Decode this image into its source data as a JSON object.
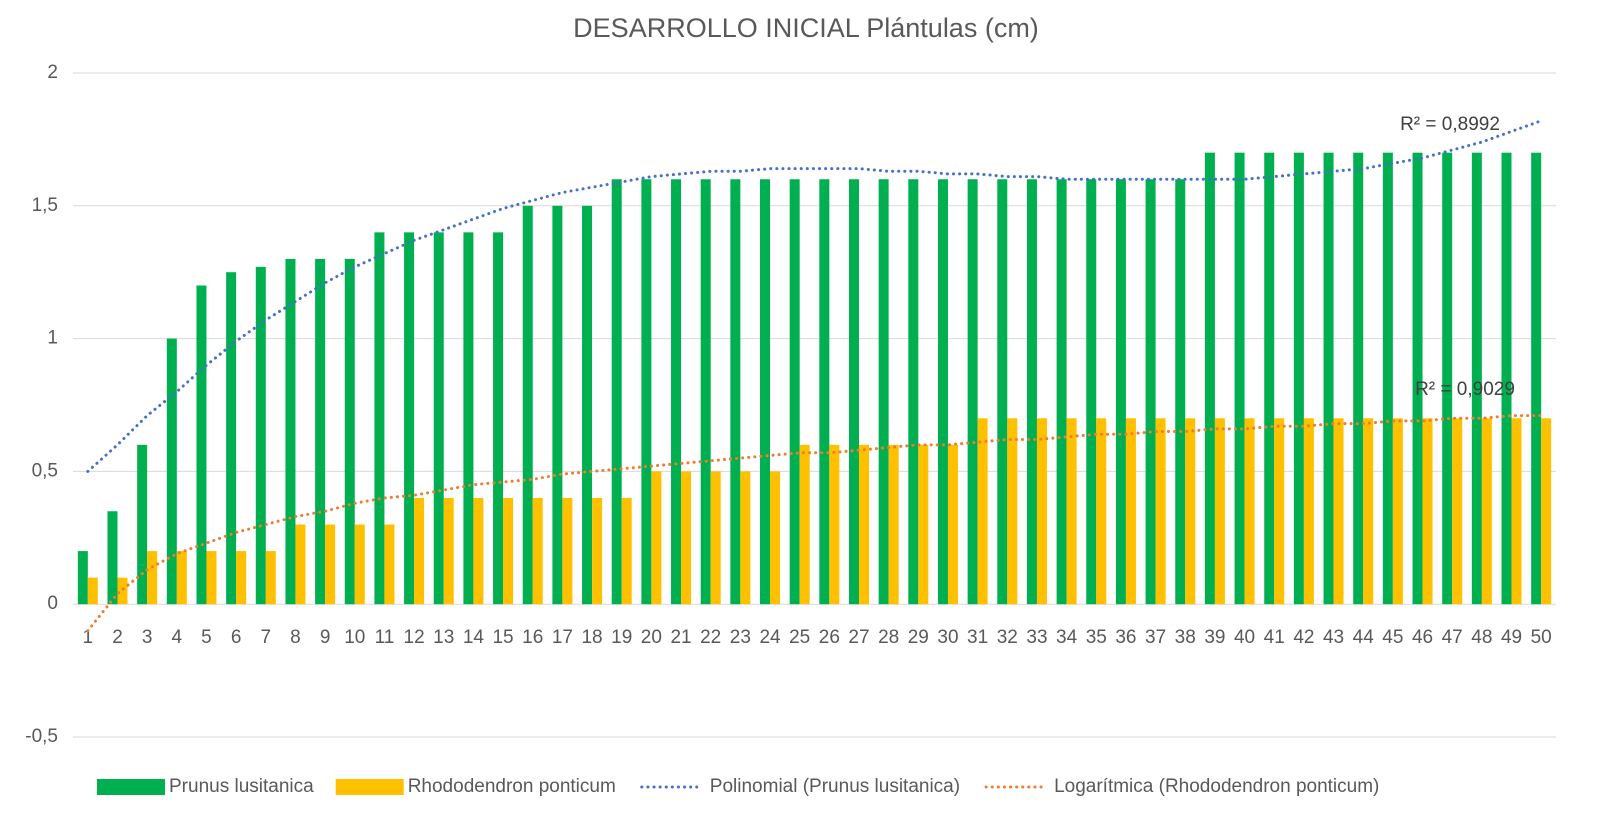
{
  "chart_data": {
    "type": "bar",
    "title": "DESARROLLO INICIAL Plántulas (cm)",
    "categories": [
      "1",
      "2",
      "3",
      "4",
      "5",
      "6",
      "7",
      "8",
      "9",
      "10",
      "11",
      "12",
      "13",
      "14",
      "15",
      "16",
      "17",
      "18",
      "19",
      "20",
      "21",
      "22",
      "23",
      "24",
      "25",
      "26",
      "27",
      "28",
      "29",
      "30",
      "31",
      "32",
      "33",
      "34",
      "35",
      "36",
      "37",
      "38",
      "39",
      "40",
      "41",
      "42",
      "43",
      "44",
      "45",
      "46",
      "47",
      "48",
      "49",
      "50"
    ],
    "series": [
      {
        "name": "Prunus lusitanica",
        "type": "bar",
        "color": "#00b050",
        "values": [
          0.2,
          0.35,
          0.6,
          1.0,
          1.2,
          1.25,
          1.27,
          1.3,
          1.3,
          1.3,
          1.4,
          1.4,
          1.4,
          1.4,
          1.4,
          1.5,
          1.5,
          1.5,
          1.6,
          1.6,
          1.6,
          1.6,
          1.6,
          1.6,
          1.6,
          1.6,
          1.6,
          1.6,
          1.6,
          1.6,
          1.6,
          1.6,
          1.6,
          1.6,
          1.6,
          1.6,
          1.6,
          1.6,
          1.7,
          1.7,
          1.7,
          1.7,
          1.7,
          1.7,
          1.7,
          1.7,
          1.7,
          1.7,
          1.7,
          1.7
        ]
      },
      {
        "name": "Rhododendron ponticum",
        "type": "bar",
        "color": "#ffc000",
        "values": [
          0.1,
          0.1,
          0.2,
          0.2,
          0.2,
          0.2,
          0.2,
          0.3,
          0.3,
          0.3,
          0.3,
          0.4,
          0.4,
          0.4,
          0.4,
          0.4,
          0.4,
          0.4,
          0.4,
          0.5,
          0.5,
          0.5,
          0.5,
          0.5,
          0.6,
          0.6,
          0.6,
          0.6,
          0.6,
          0.6,
          0.7,
          0.7,
          0.7,
          0.7,
          0.7,
          0.7,
          0.7,
          0.7,
          0.7,
          0.7,
          0.7,
          0.7,
          0.7,
          0.7,
          0.7,
          0.7,
          0.7,
          0.7,
          0.7,
          0.7
        ]
      },
      {
        "name": "Polinomial (Prunus lusitanica)",
        "type": "line",
        "color": "#4472c4",
        "values": [
          0.5,
          0.6,
          0.71,
          0.8,
          0.9,
          0.99,
          1.07,
          1.14,
          1.21,
          1.27,
          1.32,
          1.37,
          1.41,
          1.45,
          1.49,
          1.52,
          1.55,
          1.57,
          1.59,
          1.61,
          1.62,
          1.63,
          1.63,
          1.64,
          1.64,
          1.64,
          1.64,
          1.63,
          1.63,
          1.62,
          1.62,
          1.61,
          1.61,
          1.6,
          1.6,
          1.6,
          1.6,
          1.6,
          1.6,
          1.6,
          1.61,
          1.62,
          1.63,
          1.64,
          1.66,
          1.68,
          1.71,
          1.74,
          1.78,
          1.82
        ]
      },
      {
        "name": "Logarítmica (Rhododendron ponticum)",
        "type": "line",
        "color": "#ed7d31",
        "values": [
          -0.1,
          0.04,
          0.13,
          0.19,
          0.23,
          0.27,
          0.3,
          0.33,
          0.35,
          0.38,
          0.4,
          0.41,
          0.43,
          0.45,
          0.46,
          0.47,
          0.49,
          0.5,
          0.51,
          0.52,
          0.53,
          0.54,
          0.55,
          0.56,
          0.57,
          0.57,
          0.58,
          0.59,
          0.6,
          0.6,
          0.61,
          0.62,
          0.62,
          0.63,
          0.64,
          0.64,
          0.65,
          0.65,
          0.66,
          0.66,
          0.67,
          0.67,
          0.68,
          0.68,
          0.69,
          0.69,
          0.7,
          0.7,
          0.71,
          0.71
        ]
      }
    ],
    "annotations": [
      "R² = 0,8992",
      "R² = 0,9029"
    ],
    "ylim": [
      -0.5,
      2
    ],
    "yticks": [
      {
        "value": -0.5,
        "label": "-0,5"
      },
      0,
      {
        "value": 0.5,
        "label": "0,5"
      },
      1,
      {
        "value": 1.5,
        "label": "1,5"
      },
      2
    ],
    "grid": true,
    "legend": "bottom"
  }
}
